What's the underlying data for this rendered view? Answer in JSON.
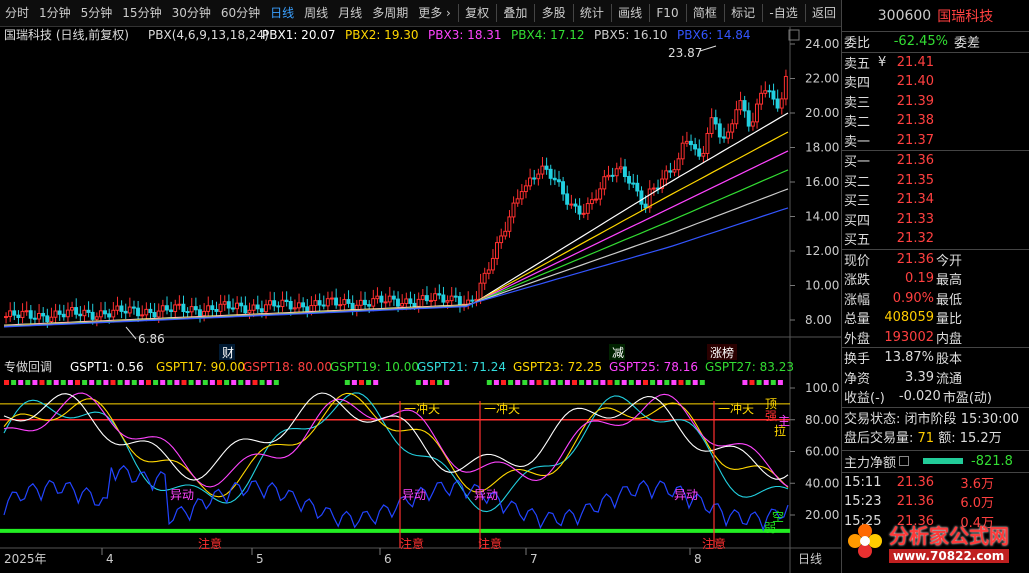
{
  "toolbar": {
    "periods": [
      "分时",
      "1分钟",
      "5分钟",
      "15分钟",
      "30分钟",
      "60分钟",
      "日线",
      "周线",
      "月线",
      "多周期",
      "更多 ›"
    ],
    "active_period": "日线",
    "actions": [
      "复权",
      "叠加",
      "多股",
      "统计",
      "画线",
      "F10",
      "简框",
      "标记",
      "-自选",
      "返回"
    ]
  },
  "main_chart": {
    "title": "国瑞科技 (日线,前复权)",
    "indicator": "PBX(4,6,9,13,18,24)",
    "pbx": [
      {
        "label": "PBX1: 20.07",
        "color": "#ffffff"
      },
      {
        "label": "PBX2: 19.30",
        "color": "#ffd700"
      },
      {
        "label": "PBX3: 18.31",
        "color": "#ff44ff"
      },
      {
        "label": "PBX4: 17.12",
        "color": "#33dd33"
      },
      {
        "label": "PBX5: 16.10",
        "color": "#cccccc"
      },
      {
        "label": "PBX6: 14.84",
        "color": "#3355ff"
      }
    ],
    "y_ticks": [
      "24.00",
      "22.00",
      "20.00",
      "18.00",
      "16.00",
      "14.00",
      "12.00",
      "10.00",
      "8.00"
    ],
    "high_label": "23.87",
    "low_label": "6.86",
    "event_tags": [
      "财",
      "减",
      "涨榜"
    ]
  },
  "sub_chart": {
    "title": "专做回调",
    "gspt": [
      {
        "label": "GSPT1: 0.56",
        "color": "#ffffff"
      },
      {
        "label": "GSPT17: 90.00",
        "color": "#ffd700"
      },
      {
        "label": "GSPT18: 80.00",
        "color": "#ff4040"
      },
      {
        "label": "GSPT19: 10.00",
        "color": "#33dd33"
      },
      {
        "label": "GSPT21: 71.24",
        "color": "#33dddd"
      },
      {
        "label": "GSPT23: 72.25",
        "color": "#ffd700"
      },
      {
        "label": "GSPT25: 78.16",
        "color": "#ff44ff"
      },
      {
        "label": "GSPT27: 83.23",
        "color": "#33dd33"
      }
    ],
    "y_ticks": [
      "100.0",
      "80.00",
      "60.00",
      "40.00",
      "20.00"
    ],
    "annotations": [
      "一冲天",
      "一冲天",
      "一冲天",
      "异动",
      "异动",
      "异动",
      "异动",
      "注意",
      "注意",
      "注意",
      "注意"
    ],
    "right_labels": [
      "顶",
      "强",
      "主",
      "拉",
      "空",
      "弱"
    ]
  },
  "x_axis": {
    "labels": [
      "2025年",
      "4",
      "5",
      "6",
      "7",
      "8",
      "日线"
    ]
  },
  "quote": {
    "code": "300600",
    "name": "国瑞科技",
    "weibi_label": "委比",
    "weibi_value": "-62.45%",
    "weicha_label": "委差",
    "asks": [
      {
        "label": "卖五",
        "price": "21.41",
        "vol": ""
      },
      {
        "label": "卖四",
        "price": "21.40",
        "vol": ""
      },
      {
        "label": "卖三",
        "price": "21.39",
        "vol": ""
      },
      {
        "label": "卖二",
        "price": "21.38",
        "vol": ""
      },
      {
        "label": "卖一",
        "price": "21.37",
        "vol": ""
      }
    ],
    "ask_unit": "¥",
    "bids": [
      {
        "label": "买一",
        "price": "21.36",
        "vol": ""
      },
      {
        "label": "买二",
        "price": "21.35",
        "vol": ""
      },
      {
        "label": "买三",
        "price": "21.34",
        "vol": ""
      },
      {
        "label": "买四",
        "price": "21.33",
        "vol": ""
      },
      {
        "label": "买五",
        "price": "21.32",
        "vol": ""
      }
    ],
    "stats": [
      {
        "l1": "现价",
        "v1": "21.36",
        "c1": "red",
        "l2": "今开",
        "v2": "",
        "c2": "red"
      },
      {
        "l1": "涨跌",
        "v1": "0.19",
        "c1": "red",
        "l2": "最高",
        "v2": "",
        "c2": "red"
      },
      {
        "l1": "涨幅",
        "v1": "0.90%",
        "c1": "red",
        "l2": "最低",
        "v2": "",
        "c2": "red"
      },
      {
        "l1": "总量",
        "v1": "408059",
        "c1": "yellow",
        "l2": "量比",
        "v2": "",
        "c2": "white"
      },
      {
        "l1": "外盘",
        "v1": "193002",
        "c1": "red",
        "l2": "内盘",
        "v2": "",
        "c2": "green"
      }
    ],
    "stats2": [
      {
        "l1": "换手",
        "v1": "13.87%",
        "c1": "white",
        "l2": "股本",
        "v2": ""
      },
      {
        "l1": "净资",
        "v1": "3.39",
        "c1": "white",
        "l2": "流通",
        "v2": ""
      },
      {
        "l1": "收益(-)",
        "v1": "-0.020",
        "c1": "white",
        "l2": "市盈(动)",
        "v2": ""
      }
    ],
    "trade_state_label": "交易状态:",
    "trade_state": "闭市阶段",
    "trade_time": "15:30:00",
    "after_label": "盘后交易量:",
    "after_vol": "71",
    "amount_label": "额:",
    "amount": "15.2万",
    "net_label": "主力净额",
    "net_value": "-821.8",
    "ticks": [
      {
        "time": "15:11",
        "price": "21.36",
        "vol": "3.6万"
      },
      {
        "time": "15:23",
        "price": "21.36",
        "vol": "6.0万"
      },
      {
        "time": "15:25",
        "price": "21.36",
        "vol": "0.4万"
      }
    ]
  },
  "watermark": {
    "text": "分析家公式网",
    "url": "www.70822.com"
  }
}
